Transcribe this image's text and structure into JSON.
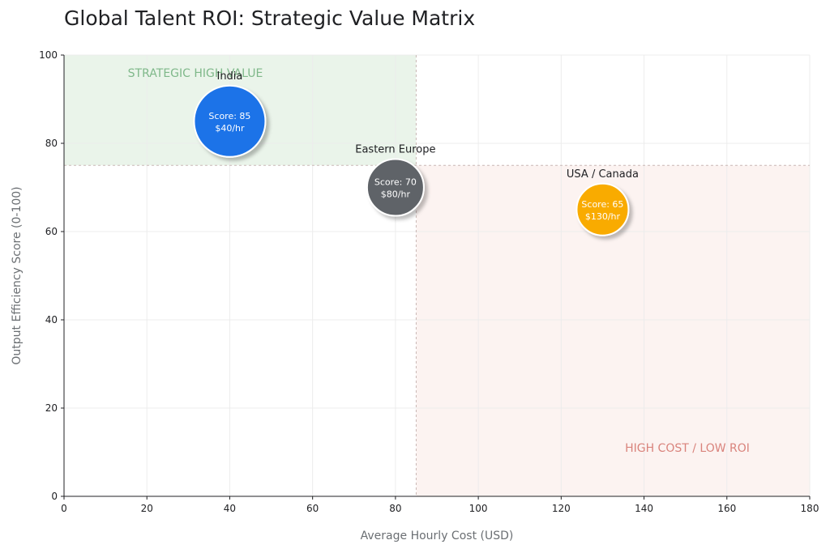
{
  "chart_data": {
    "type": "scatter",
    "title": "Global Talent ROI: Strategic Value Matrix",
    "xlabel": "Average Hourly Cost (USD)",
    "ylabel": "Output Efficiency Score (0-100)",
    "xlim": [
      0,
      180
    ],
    "ylim": [
      0,
      100
    ],
    "xticks": [
      0,
      20,
      40,
      60,
      80,
      100,
      120,
      140,
      160,
      180
    ],
    "yticks": [
      0,
      20,
      40,
      60,
      80,
      100
    ],
    "grid": true,
    "thresholds": {
      "x": 85,
      "y": 75
    },
    "zones": [
      {
        "label": "STRATEGIC HIGH VALUE",
        "x_range": [
          0,
          85
        ],
        "y_range": [
          75,
          100
        ],
        "color": "#eaf4ea",
        "text_color": "#7fb88a"
      },
      {
        "label": "HIGH COST / LOW ROI",
        "x_range": [
          85,
          180
        ],
        "y_range": [
          0,
          75
        ],
        "color": "#fcf3f1",
        "text_color": "#d9837c"
      }
    ],
    "points": [
      {
        "name": "India",
        "x": 40,
        "y": 85,
        "score_text": "Score: 85",
        "cost_text": "$40/hr",
        "color": "#1a73e8",
        "size": 3
      },
      {
        "name": "Eastern Europe",
        "x": 80,
        "y": 70,
        "score_text": "Score: 70",
        "cost_text": "$80/hr",
        "color": "#5f6368",
        "size": 2
      },
      {
        "name": "USA / Canada",
        "x": 130,
        "y": 65,
        "score_text": "Score: 65",
        "cost_text": "$130/hr",
        "color": "#f9ab00",
        "size": 1
      }
    ]
  }
}
